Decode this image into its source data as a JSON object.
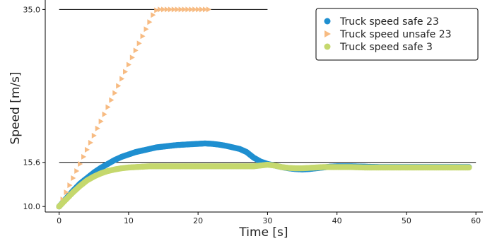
{
  "chart_data": {
    "type": "scatter",
    "xlabel": "Time [s]",
    "ylabel": "Speed [m/s]",
    "xlim": [
      -2,
      61
    ],
    "ylim": [
      9.3,
      36.2
    ],
    "xticks": [
      0,
      10,
      20,
      30,
      40,
      50,
      60
    ],
    "yticks": [
      10.0,
      15.6,
      35.0
    ],
    "ytick_labels": [
      "10.0",
      "15.6",
      "35.0"
    ],
    "grid": false,
    "legend_position": "top-right",
    "reference_lines": [
      {
        "y": 35.0,
        "x_from": 0,
        "x_to": 30,
        "color": "#000000"
      },
      {
        "y": 15.6,
        "x_from": 0,
        "x_to": 60,
        "color": "#000000"
      }
    ],
    "series": [
      {
        "name": "Truck speed safe 23",
        "color": "#1f8fd0",
        "marker": "circle",
        "x": [
          0,
          1,
          2,
          3,
          4,
          5,
          6,
          7,
          8,
          9,
          10,
          11,
          12,
          13,
          14,
          15,
          16,
          17,
          18,
          19,
          20,
          21,
          22,
          23,
          24,
          25,
          26,
          27,
          28,
          29,
          30,
          31,
          32,
          33,
          34,
          35,
          36,
          37,
          38,
          39,
          40,
          42,
          44,
          46,
          48,
          50,
          52,
          54,
          56,
          58,
          59
        ],
        "y": [
          10.0,
          11.0,
          12.0,
          12.9,
          13.6,
          14.3,
          14.9,
          15.4,
          15.9,
          16.3,
          16.6,
          16.9,
          17.1,
          17.3,
          17.5,
          17.6,
          17.7,
          17.8,
          17.85,
          17.9,
          17.95,
          18.0,
          17.95,
          17.85,
          17.7,
          17.5,
          17.3,
          16.9,
          16.2,
          15.7,
          15.4,
          15.2,
          15.0,
          14.85,
          14.75,
          14.7,
          14.75,
          14.85,
          14.95,
          15.05,
          15.1,
          15.1,
          15.05,
          15.0,
          15.0,
          15.0,
          15.0,
          15.0,
          15.0,
          15.0,
          15.0
        ]
      },
      {
        "name": "Truck speed unsafe 23",
        "color": "#f7bb82",
        "marker": "triangle-right",
        "x": [
          0,
          0.5,
          1,
          1.5,
          2,
          2.5,
          3,
          3.5,
          4,
          4.5,
          5,
          5.5,
          6,
          6.5,
          7,
          7.5,
          8,
          8.5,
          9,
          9.5,
          10,
          10.5,
          11,
          11.5,
          12,
          12.5,
          13,
          13.5,
          14,
          14.5,
          15,
          15.5,
          16,
          16.5,
          17,
          17.5,
          18,
          18.5,
          19,
          19.5,
          20,
          20.5,
          21,
          21.5
        ],
        "y": [
          10.0,
          10.9,
          11.8,
          12.7,
          13.6,
          14.5,
          15.4,
          16.3,
          17.2,
          18.1,
          19.0,
          19.9,
          20.8,
          21.7,
          22.6,
          23.5,
          24.4,
          25.3,
          26.2,
          27.1,
          28.0,
          28.9,
          29.8,
          30.7,
          31.6,
          32.5,
          33.4,
          34.3,
          34.9,
          35.0,
          35.0,
          35.0,
          35.0,
          35.0,
          35.0,
          35.0,
          35.0,
          35.0,
          35.0,
          35.0,
          35.0,
          35.0,
          35.0,
          35.0
        ]
      },
      {
        "name": "Truck speed safe 3",
        "color": "#c5d86d",
        "marker": "circle",
        "x": [
          0,
          1,
          2,
          3,
          4,
          5,
          6,
          7,
          8,
          9,
          10,
          11,
          12,
          13,
          14,
          15,
          16,
          17,
          18,
          19,
          20,
          21,
          22,
          23,
          24,
          25,
          26,
          27,
          28,
          29,
          30,
          31,
          32,
          33,
          34,
          35,
          36,
          37,
          38,
          39,
          40,
          42,
          44,
          46,
          48,
          50,
          52,
          54,
          56,
          58,
          59
        ],
        "y": [
          10.0,
          10.9,
          11.8,
          12.6,
          13.3,
          13.8,
          14.2,
          14.5,
          14.7,
          14.85,
          14.95,
          15.0,
          15.05,
          15.1,
          15.1,
          15.1,
          15.1,
          15.1,
          15.1,
          15.1,
          15.1,
          15.1,
          15.1,
          15.1,
          15.1,
          15.1,
          15.1,
          15.1,
          15.1,
          15.2,
          15.3,
          15.2,
          15.0,
          14.9,
          14.85,
          14.85,
          14.9,
          14.95,
          15.0,
          15.0,
          15.0,
          15.0,
          14.95,
          14.95,
          14.95,
          14.95,
          14.95,
          14.95,
          14.95,
          14.95,
          14.95
        ]
      }
    ]
  }
}
